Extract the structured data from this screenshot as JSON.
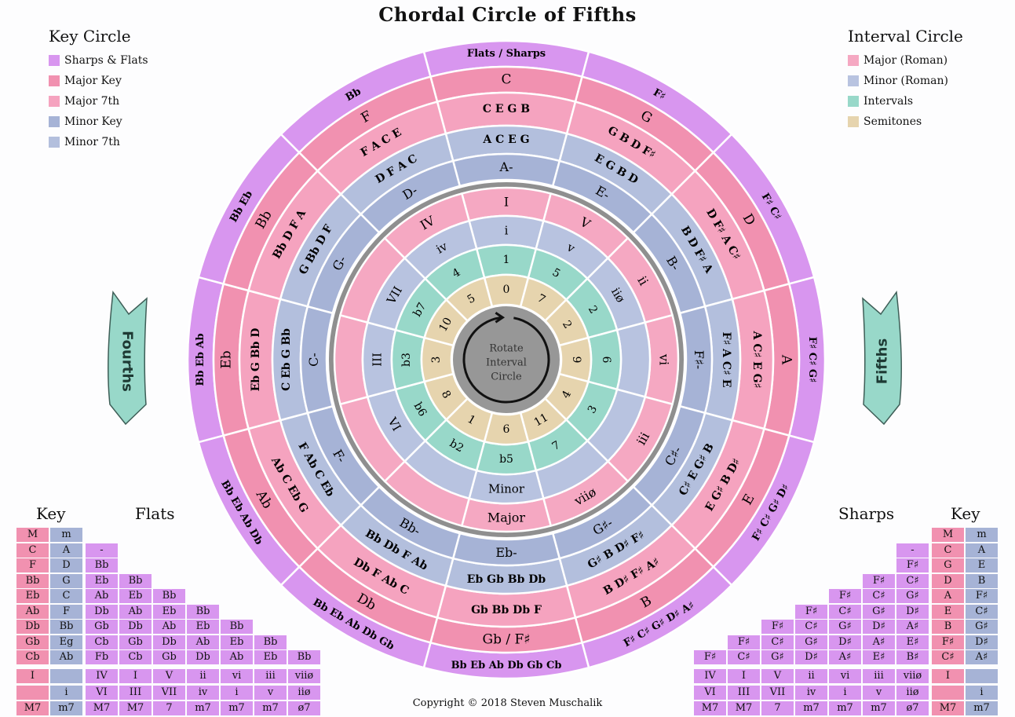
{
  "title": "Chordal Circle of Fifths",
  "colors": {
    "sharps_flats": "#d896ef",
    "major_key": "#f191b0",
    "major_7th": "#f5a3bf",
    "minor_key": "#a6b3d6",
    "minor_7th": "#b3bfdd",
    "major_roman": "#f5a8c2",
    "minor_roman": "#b8c3e0",
    "intervals": "#98d8c9",
    "semitones": "#e6d4ae",
    "center": "#979797",
    "arrow": "#98d8c9"
  },
  "key_legend": {
    "title": "Key Circle",
    "items": [
      {
        "label": "Sharps & Flats",
        "color": "#d896ef"
      },
      {
        "label": "Major Key",
        "color": "#f191b0"
      },
      {
        "label": "Major 7th",
        "color": "#f5a3bf"
      },
      {
        "label": "Minor Key",
        "color": "#a6b3d6"
      },
      {
        "label": "Minor 7th",
        "color": "#b3bfdd"
      }
    ]
  },
  "interval_legend": {
    "title": "Interval Circle",
    "items": [
      {
        "label": "Major (Roman)",
        "color": "#f5a8c2"
      },
      {
        "label": "Minor (Roman)",
        "color": "#b8c3e0"
      },
      {
        "label": "Intervals",
        "color": "#98d8c9"
      },
      {
        "label": "Semitones",
        "color": "#e6d4ae"
      }
    ]
  },
  "arrows": {
    "left": "Fourths",
    "right": "Fifths"
  },
  "center_label": [
    "Rotate",
    "Interval",
    "Circle"
  ],
  "key_circle": [
    {
      "accidentals": "Flats / Sharps",
      "major": "C",
      "major7": "C E G B",
      "minor7": "A C E G",
      "minor": "A-"
    },
    {
      "accidentals": "F♯",
      "major": "G",
      "major7": "G B D F♯",
      "minor7": "E G B D",
      "minor": "E-"
    },
    {
      "accidentals": "F♯ C♯",
      "major": "D",
      "major7": "D F♯ A C♯",
      "minor7": "B D F♯ A",
      "minor": "B-"
    },
    {
      "accidentals": "F♯ C♯ G♯",
      "major": "A",
      "major7": "A C♯ E G♯",
      "minor7": "F♯ A C♯ E",
      "minor": "F♯-"
    },
    {
      "accidentals": "F♯ C♯ G♯ D♯",
      "major": "E",
      "major7": "E G♯ B D♯",
      "minor7": "C♯ E G♯ B",
      "minor": "C♯-"
    },
    {
      "accidentals": "F♯ C♯ G♯ D♯ A♯",
      "major": "B",
      "major7": "B D♯ F♯ A♯",
      "minor7": "G♯ B D♯ F♯",
      "minor": "G♯-"
    },
    {
      "accidentals": "Bb Eb Ab Db Gb Cb",
      "major": "Gb / F♯",
      "major7": "Gb Bb Db F",
      "minor7": "Eb Gb Bb Db",
      "minor": "Eb-"
    },
    {
      "accidentals": "Bb Eb Ab Db Gb",
      "major": "Db",
      "major7": "Db F Ab C",
      "minor7": "Bb Db F Ab",
      "minor": "Bb-"
    },
    {
      "accidentals": "Bb Eb Ab Db",
      "major": "Ab",
      "major7": "Ab C Eb G",
      "minor7": "F Ab C Eb",
      "minor": "F-"
    },
    {
      "accidentals": "Bb Eb Ab",
      "major": "Eb",
      "major7": "Eb G Bb D",
      "minor7": "C Eb G Bb",
      "minor": "C-"
    },
    {
      "accidentals": "Bb Eb",
      "major": "Bb",
      "major7": "Bb D F A",
      "minor7": "G Bb D F",
      "minor": "G-"
    },
    {
      "accidentals": "Bb",
      "major": "F",
      "major7": "F A C E",
      "minor7": "D F A C",
      "minor": "D-"
    }
  ],
  "interval_circle": [
    {
      "major_roman": "I",
      "minor_roman": "i",
      "interval": "1",
      "semitone": "0"
    },
    {
      "major_roman": "V",
      "minor_roman": "v",
      "interval": "5",
      "semitone": "7"
    },
    {
      "major_roman": "ii",
      "minor_roman": "iiø",
      "interval": "2",
      "semitone": "2"
    },
    {
      "major_roman": "vi",
      "minor_roman": "",
      "interval": "6",
      "semitone": "9"
    },
    {
      "major_roman": "iii",
      "minor_roman": "",
      "interval": "3",
      "semitone": "4"
    },
    {
      "major_roman": "viiø",
      "minor_roman": "",
      "interval": "7",
      "semitone": "11"
    },
    {
      "major_roman": "Major",
      "minor_roman": "Minor",
      "interval": "b5",
      "semitone": "6"
    },
    {
      "major_roman": "",
      "minor_roman": "",
      "interval": "b2",
      "semitone": "1"
    },
    {
      "major_roman": "",
      "minor_roman": "VI",
      "interval": "b6",
      "semitone": "8"
    },
    {
      "major_roman": "",
      "minor_roman": "III",
      "interval": "b3",
      "semitone": "3"
    },
    {
      "major_roman": "",
      "minor_roman": "VII",
      "interval": "b7",
      "semitone": "10"
    },
    {
      "major_roman": "IV",
      "minor_roman": "iv",
      "interval": "4",
      "semitone": "5"
    }
  ],
  "flats_table": {
    "key_heading": "Key",
    "heading": "Flats",
    "header": [
      "M",
      "m"
    ],
    "rows": [
      {
        "M": "C",
        "m": "A",
        "acc": [
          "-"
        ]
      },
      {
        "M": "F",
        "m": "D",
        "acc": [
          "Bb"
        ]
      },
      {
        "M": "Bb",
        "m": "G",
        "acc": [
          "Eb",
          "Bb"
        ]
      },
      {
        "M": "Eb",
        "m": "C",
        "acc": [
          "Ab",
          "Eb",
          "Bb"
        ]
      },
      {
        "M": "Ab",
        "m": "F",
        "acc": [
          "Db",
          "Ab",
          "Eb",
          "Bb"
        ]
      },
      {
        "M": "Db",
        "m": "Bb",
        "acc": [
          "Gb",
          "Db",
          "Ab",
          "Eb",
          "Bb"
        ]
      },
      {
        "M": "Gb",
        "m": "Eg",
        "acc": [
          "Cb",
          "Gb",
          "Db",
          "Ab",
          "Eb",
          "Bb"
        ]
      },
      {
        "M": "Cb",
        "m": "Ab",
        "acc": [
          "Fb",
          "Cb",
          "Gb",
          "Db",
          "Ab",
          "Eb",
          "Bb"
        ]
      }
    ],
    "roman": [
      [
        "I",
        "",
        "IV",
        "I",
        "V",
        "ii",
        "vi",
        "iii",
        "viiø"
      ],
      [
        "",
        "i",
        "VI",
        "III",
        "VII",
        "iv",
        "i",
        "v",
        "iiø"
      ],
      [
        "M7",
        "m7",
        "M7",
        "M7",
        "7",
        "m7",
        "m7",
        "m7",
        "ø7"
      ]
    ]
  },
  "sharps_table": {
    "key_heading": "Key",
    "heading": "Sharps",
    "header": [
      "M",
      "m"
    ],
    "rows": [
      {
        "M": "C",
        "m": "A",
        "acc": [
          "-"
        ]
      },
      {
        "M": "G",
        "m": "E",
        "acc": [
          "F♯"
        ]
      },
      {
        "M": "D",
        "m": "B",
        "acc": [
          "F♯",
          "C♯"
        ]
      },
      {
        "M": "A",
        "m": "F♯",
        "acc": [
          "F♯",
          "C♯",
          "G♯"
        ]
      },
      {
        "M": "E",
        "m": "C♯",
        "acc": [
          "F♯",
          "C♯",
          "G♯",
          "D♯"
        ]
      },
      {
        "M": "B",
        "m": "G♯",
        "acc": [
          "F♯",
          "C♯",
          "G♯",
          "D♯",
          "A♯"
        ]
      },
      {
        "M": "F♯",
        "m": "D♯",
        "acc": [
          "F♯",
          "C♯",
          "G♯",
          "D♯",
          "A♯",
          "E♯"
        ]
      },
      {
        "M": "C♯",
        "m": "A♯",
        "acc": [
          "F♯",
          "C♯",
          "G♯",
          "D♯",
          "A♯",
          "E♯",
          "B♯"
        ]
      }
    ],
    "roman": [
      [
        "IV",
        "I",
        "V",
        "ii",
        "vi",
        "iii",
        "viiø",
        "I",
        ""
      ],
      [
        "VI",
        "III",
        "VII",
        "iv",
        "i",
        "v",
        "iiø",
        "",
        "i"
      ],
      [
        "M7",
        "M7",
        "7",
        "m7",
        "m7",
        "m7",
        "ø7",
        "M7",
        "m7"
      ]
    ]
  },
  "copyright": "Copyright © 2018 Steven Muschalik"
}
